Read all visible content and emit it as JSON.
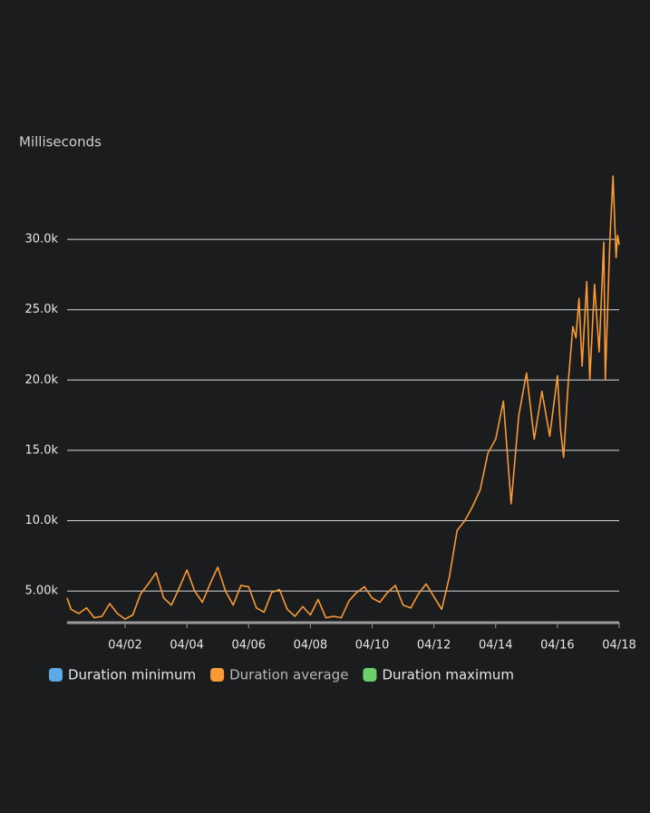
{
  "chart_data": {
    "type": "line",
    "y_label": "Milliseconds",
    "x": [
      0.12,
      0.25,
      0.5,
      0.75,
      1.0,
      1.25,
      1.5,
      1.75,
      2.0,
      2.25,
      2.5,
      2.75,
      3.0,
      3.25,
      3.5,
      3.75,
      4.0,
      4.25,
      4.5,
      4.75,
      5.0,
      5.25,
      5.5,
      5.75,
      6.0,
      6.25,
      6.5,
      6.75,
      7.0,
      7.25,
      7.5,
      7.75,
      8.0,
      8.25,
      8.5,
      8.75,
      9.0,
      9.25,
      9.5,
      9.75,
      10.0,
      10.25,
      10.5,
      10.75,
      11.0,
      11.25,
      11.5,
      11.75,
      12.0,
      12.25,
      12.5,
      12.75,
      13.0,
      13.25,
      13.5,
      13.75,
      14.0,
      14.25,
      14.5,
      14.75,
      15.0,
      15.25,
      15.5,
      15.75,
      16.0,
      16.1,
      16.2,
      16.35,
      16.5,
      16.6,
      16.7,
      16.8,
      16.95,
      17.05,
      17.2,
      17.35,
      17.5,
      17.55,
      17.7,
      17.8,
      17.9,
      17.95,
      18.0
    ],
    "series": [
      {
        "name": "Duration average",
        "color": "#f89a35",
        "values": [
          4500,
          3700,
          3400,
          3800,
          3100,
          3200,
          4100,
          3400,
          3000,
          3300,
          4800,
          5500,
          6300,
          4500,
          4000,
          5200,
          6500,
          5000,
          4200,
          5500,
          6700,
          5000,
          4000,
          5400,
          5300,
          3800,
          3500,
          4900,
          5100,
          3700,
          3200,
          3900,
          3300,
          4400,
          3100,
          3200,
          3100,
          4300,
          4900,
          5300,
          4500,
          4200,
          4900,
          5400,
          4000,
          3800,
          4800,
          5500,
          4600,
          3700,
          6000,
          9300,
          10000,
          11000,
          12200,
          14800,
          15800,
          18500,
          11200,
          17500,
          20500,
          15800,
          19200,
          16000,
          20300,
          16500,
          14500,
          19800,
          23800,
          23000,
          25800,
          21000,
          27000,
          20000,
          26800,
          22000,
          29800,
          20000,
          30000,
          34500,
          28700,
          30300,
          29600
        ]
      }
    ],
    "legend": [
      {
        "name": "Duration minimum",
        "color": "#5ea8e8"
      },
      {
        "name": "Duration average",
        "color": "#f89a35"
      },
      {
        "name": "Duration maximum",
        "color": "#6cd06c"
      }
    ],
    "xlim": [
      0.12,
      18.0
    ],
    "xticks": [
      {
        "value": 2,
        "label": "04/02"
      },
      {
        "value": 4,
        "label": "04/04"
      },
      {
        "value": 6,
        "label": "04/06"
      },
      {
        "value": 8,
        "label": "04/08"
      },
      {
        "value": 10,
        "label": "04/10"
      },
      {
        "value": 12,
        "label": "04/12"
      },
      {
        "value": 14,
        "label": "04/14"
      },
      {
        "value": 16,
        "label": "04/16"
      },
      {
        "value": 18,
        "label": "04/18"
      }
    ],
    "ylim": [
      2750,
      36000
    ],
    "yticks": [
      {
        "value": 5000,
        "label": "5.00k"
      },
      {
        "value": 10000,
        "label": "10.0k"
      },
      {
        "value": 15000,
        "label": "15.0k"
      },
      {
        "value": 20000,
        "label": "20.0k"
      },
      {
        "value": 25000,
        "label": "25.0k"
      },
      {
        "value": 30000,
        "label": "30.0k"
      }
    ],
    "grid": true
  }
}
